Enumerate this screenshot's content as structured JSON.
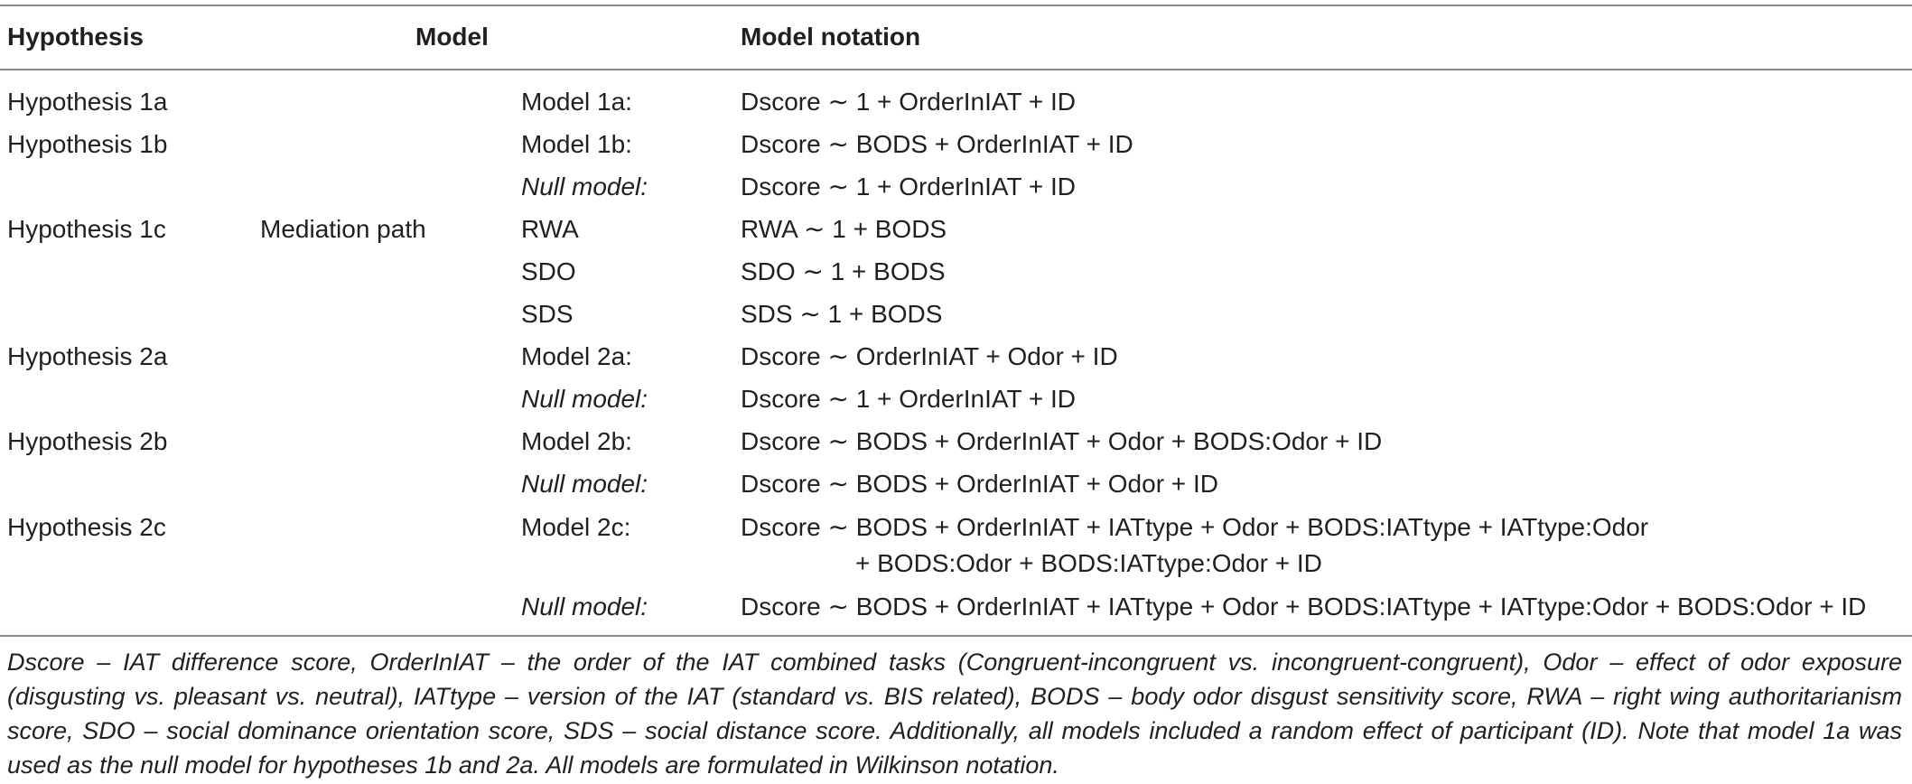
{
  "header": {
    "hypothesis": "Hypothesis",
    "model": "Model",
    "notation": "Model notation"
  },
  "rows": [
    {
      "hypothesis": "Hypothesis 1a",
      "path": "",
      "model": "Model 1a:",
      "model_italic": false,
      "notation": "Dscore ∼ 1 + OrderInIAT + ID"
    },
    {
      "hypothesis": "Hypothesis 1b",
      "path": "",
      "model": "Model 1b:",
      "model_italic": false,
      "notation": "Dscore ∼ BODS + OrderInIAT + ID"
    },
    {
      "hypothesis": "",
      "path": "",
      "model": "Null model:",
      "model_italic": true,
      "notation": "Dscore ∼ 1 + OrderInIAT + ID"
    },
    {
      "hypothesis": "Hypothesis 1c",
      "path": "Mediation path",
      "model": "RWA",
      "model_italic": false,
      "notation": "RWA ∼ 1 + BODS"
    },
    {
      "hypothesis": "",
      "path": "",
      "model": "SDO",
      "model_italic": false,
      "notation": "SDO ∼ 1 + BODS"
    },
    {
      "hypothesis": "",
      "path": "",
      "model": "SDS",
      "model_italic": false,
      "notation": "SDS ∼ 1 + BODS"
    },
    {
      "hypothesis": "Hypothesis 2a",
      "path": "",
      "model": "Model 2a:",
      "model_italic": false,
      "notation": "Dscore ∼ OrderInIAT + Odor + ID"
    },
    {
      "hypothesis": "",
      "path": "",
      "model": "Null model:",
      "model_italic": true,
      "notation": "Dscore ∼ 1 + OrderInIAT + ID"
    },
    {
      "hypothesis": "Hypothesis 2b",
      "path": "",
      "model": "Model 2b:",
      "model_italic": false,
      "notation": "Dscore ∼ BODS + OrderInIAT + Odor + BODS:Odor + ID"
    },
    {
      "hypothesis": "",
      "path": "",
      "model": "Null model:",
      "model_italic": true,
      "notation": "Dscore ∼ BODS + OrderInIAT + Odor + ID"
    },
    {
      "hypothesis": "Hypothesis 2c",
      "path": "",
      "model": "Model 2c:",
      "model_italic": false,
      "notation": "Dscore ∼ BODS + OrderInIAT + IATtype + Odor + BODS:IATtype + IATtype:Odor",
      "notation_cont": "+ BODS:Odor + BODS:IATtype:Odor + ID"
    },
    {
      "hypothesis": "",
      "path": "",
      "model": "Null model:",
      "model_italic": true,
      "notation": "Dscore ∼ BODS + OrderInIAT + IATtype + Odor + BODS:IATtype + IATtype:Odor + BODS:Odor + ID"
    }
  ],
  "footnote": "Dscore – IAT difference score, OrderInIAT – the order of the IAT combined tasks (Congruent-incongruent vs. incongruent-congruent), Odor – effect of odor exposure (disgusting vs. pleasant vs. neutral), IATtype – version of the IAT (standard vs. BIS related), BODS – body odor disgust sensitivity score, RWA – right wing authoritarianism score, SDO – social dominance orientation score, SDS – social distance score. Additionally, all models included a random effect of participant (ID). Note that model 1a was used as the null model for hypotheses 1b and 2a. All models are formulated in Wilkinson notation."
}
